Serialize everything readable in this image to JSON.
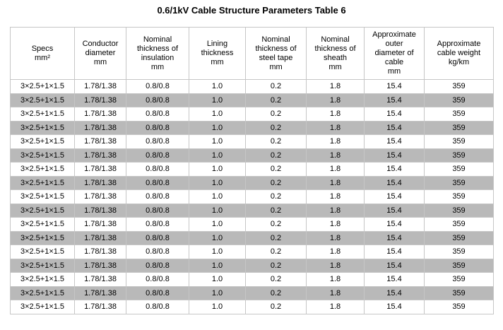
{
  "page": {
    "title": "0.6/1kV Cable Structure Parameters Table 6"
  },
  "colors": {
    "row_alt": "#b9b9b9",
    "border": "#c6c6c6",
    "text": "#000000",
    "background": "#ffffff"
  },
  "table": {
    "headers": [
      "Specs\nmm²",
      "Conductor\ndiameter\nmm",
      "Nominal\nthickness of\ninsulation\nmm",
      "Lining\nthickness\nmm",
      "Nominal\nthickness of\nsteel tape\nmm",
      "Nominal\nthickness of\nsheath\nmm",
      "Approximate\nouter\ndiameter of\ncable\nmm",
      "Approximate\ncable weight\nkg/km"
    ],
    "rows": [
      [
        "3×2.5+1×1.5",
        "1.78/1.38",
        "0.8/0.8",
        "1.0",
        "0.2",
        "1.8",
        "15.4",
        "359"
      ],
      [
        "3×2.5+1×1.5",
        "1.78/1.38",
        "0.8/0.8",
        "1.0",
        "0.2",
        "1.8",
        "15.4",
        "359"
      ],
      [
        "3×2.5+1×1.5",
        "1.78/1.38",
        "0.8/0.8",
        "1.0",
        "0.2",
        "1.8",
        "15.4",
        "359"
      ],
      [
        "3×2.5+1×1.5",
        "1.78/1.38",
        "0.8/0.8",
        "1.0",
        "0.2",
        "1.8",
        "15.4",
        "359"
      ],
      [
        "3×2.5+1×1.5",
        "1.78/1.38",
        "0.8/0.8",
        "1.0",
        "0.2",
        "1.8",
        "15.4",
        "359"
      ],
      [
        "3×2.5+1×1.5",
        "1.78/1.38",
        "0.8/0.8",
        "1.0",
        "0.2",
        "1.8",
        "15.4",
        "359"
      ],
      [
        "3×2.5+1×1.5",
        "1.78/1.38",
        "0.8/0.8",
        "1.0",
        "0.2",
        "1.8",
        "15.4",
        "359"
      ],
      [
        "3×2.5+1×1.5",
        "1.78/1.38",
        "0.8/0.8",
        "1.0",
        "0.2",
        "1.8",
        "15.4",
        "359"
      ],
      [
        "3×2.5+1×1.5",
        "1.78/1.38",
        "0.8/0.8",
        "1.0",
        "0.2",
        "1.8",
        "15.4",
        "359"
      ],
      [
        "3×2.5+1×1.5",
        "1.78/1.38",
        "0.8/0.8",
        "1.0",
        "0.2",
        "1.8",
        "15.4",
        "359"
      ],
      [
        "3×2.5+1×1.5",
        "1.78/1.38",
        "0.8/0.8",
        "1.0",
        "0.2",
        "1.8",
        "15.4",
        "359"
      ],
      [
        "3×2.5+1×1.5",
        "1.78/1.38",
        "0.8/0.8",
        "1.0",
        "0.2",
        "1.8",
        "15.4",
        "359"
      ],
      [
        "3×2.5+1×1.5",
        "1.78/1.38",
        "0.8/0.8",
        "1.0",
        "0.2",
        "1.8",
        "15.4",
        "359"
      ],
      [
        "3×2.5+1×1.5",
        "1.78/1.38",
        "0.8/0.8",
        "1.0",
        "0.2",
        "1.8",
        "15.4",
        "359"
      ],
      [
        "3×2.5+1×1.5",
        "1.78/1.38",
        "0.8/0.8",
        "1.0",
        "0.2",
        "1.8",
        "15.4",
        "359"
      ],
      [
        "3×2.5+1×1.5",
        "1.78/1.38",
        "0.8/0.8",
        "1.0",
        "0.2",
        "1.8",
        "15.4",
        "359"
      ],
      [
        "3×2.5+1×1.5",
        "1.78/1.38",
        "0.8/0.8",
        "1.0",
        "0.2",
        "1.8",
        "15.4",
        "359"
      ]
    ]
  }
}
